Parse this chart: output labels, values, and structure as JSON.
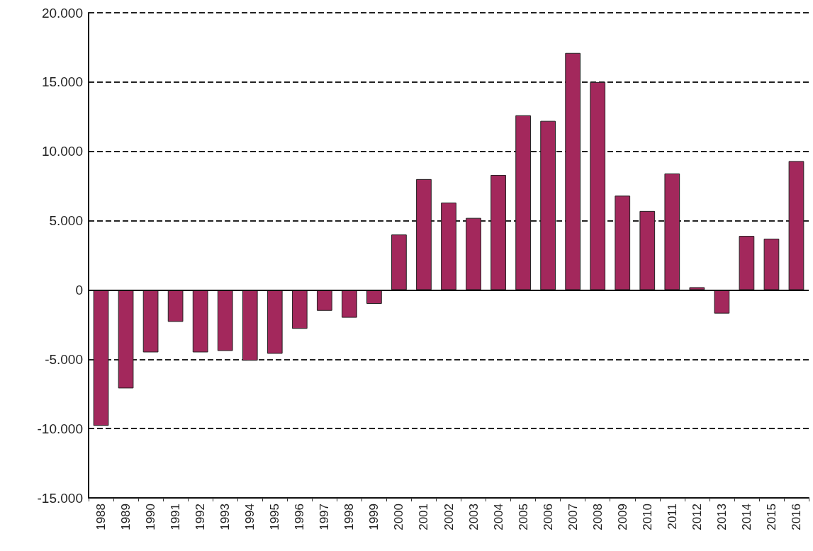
{
  "chart_data": {
    "type": "bar",
    "categories": [
      "1988",
      "1989",
      "1990",
      "1991",
      "1992",
      "1993",
      "1994",
      "1995",
      "1996",
      "1997",
      "1998",
      "1999",
      "2000",
      "2001",
      "2002",
      "2003",
      "2004",
      "2005",
      "2006",
      "2007",
      "2008",
      "2009",
      "2010",
      "2011",
      "2012",
      "2013",
      "2014",
      "2015",
      "2016"
    ],
    "values": [
      -9800,
      -7100,
      -4500,
      -2300,
      -4500,
      -4400,
      -5100,
      -4600,
      -2800,
      -1500,
      -2000,
      -1000,
      4000,
      8000,
      6300,
      5200,
      8300,
      12600,
      12200,
      17100,
      15000,
      6800,
      5700,
      8400,
      200,
      -1700,
      3900,
      3700,
      9300
    ],
    "color": "#a3285c",
    "ylim": [
      -15000,
      20000
    ],
    "yticks": [
      {
        "value": -15000,
        "label": "-15.000"
      },
      {
        "value": -10000,
        "label": "-10.000"
      },
      {
        "value": -5000,
        "label": "-5.000"
      },
      {
        "value": 0,
        "label": "0"
      },
      {
        "value": 5000,
        "label": "5.000"
      },
      {
        "value": 10000,
        "label": "10.000"
      },
      {
        "value": 15000,
        "label": "15.000"
      },
      {
        "value": 20000,
        "label": "20.000"
      }
    ],
    "grid": true
  }
}
